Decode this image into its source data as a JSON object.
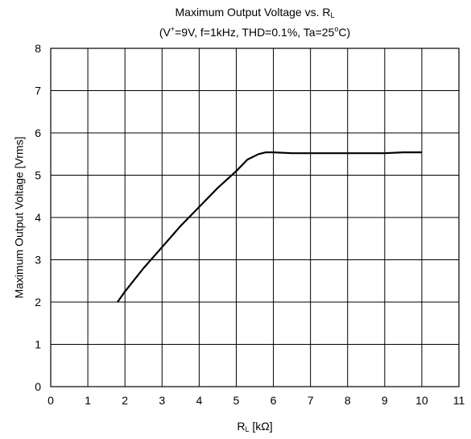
{
  "chart_data": {
    "type": "line",
    "title": {
      "line1_text": "Maximum Output Voltage vs. R",
      "line1_sub": "L",
      "line2_open": "(V",
      "line2_sup": "+",
      "line2_mid": "=9V, f=1kHz, THD=0.1%, Ta=25",
      "line2_sup2": "o",
      "line2_close": "C)"
    },
    "xlabel": {
      "main": "R",
      "sub": "L",
      "unit": " [kΩ]"
    },
    "ylabel": "Maximum Output Voltage [Vrms]",
    "xlim": [
      0,
      11
    ],
    "ylim": [
      0,
      8
    ],
    "x_ticks": [
      "0",
      "1",
      "2",
      "3",
      "4",
      "5",
      "6",
      "7",
      "8",
      "9",
      "10",
      "11"
    ],
    "y_ticks": [
      "0",
      "1",
      "2",
      "3",
      "4",
      "5",
      "6",
      "7",
      "8"
    ],
    "grid": true,
    "series": [
      {
        "color": "#000000",
        "x": [
          1.8,
          2.0,
          2.5,
          3.0,
          3.5,
          4.0,
          4.5,
          5.0,
          5.3,
          5.6,
          5.8,
          6.0,
          6.5,
          7.0,
          8.0,
          9.0,
          9.5,
          10.0
        ],
        "y": [
          2.0,
          2.25,
          2.8,
          3.3,
          3.8,
          4.25,
          4.7,
          5.1,
          5.37,
          5.5,
          5.54,
          5.54,
          5.52,
          5.52,
          5.52,
          5.52,
          5.54,
          5.54
        ]
      }
    ]
  }
}
